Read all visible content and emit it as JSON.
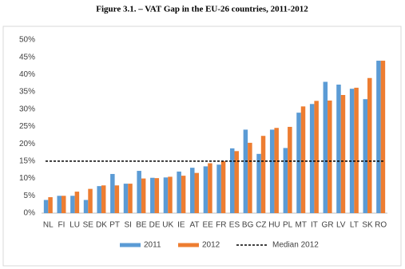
{
  "chart_data": {
    "type": "bar",
    "title": "Figure 3.1. – VAT Gap in the EU-26 countries, 2011-2012",
    "categories": [
      "NL",
      "FI",
      "LU",
      "SE",
      "DK",
      "PT",
      "SI",
      "BE",
      "DE",
      "UK",
      "IE",
      "AT",
      "EE",
      "FR",
      "ES",
      "BG",
      "CZ",
      "HU",
      "PL",
      "MT",
      "IT",
      "GR",
      "LV",
      "LT",
      "SK",
      "RO"
    ],
    "series": [
      {
        "name": "2011",
        "color": "#5b9bd5",
        "values": [
          3.8,
          5.0,
          5.0,
          3.8,
          7.8,
          11.3,
          8.5,
          12.2,
          10.2,
          10.3,
          12.0,
          13.1,
          13.5,
          14.0,
          18.7,
          24.1,
          17.1,
          24.1,
          18.8,
          29.0,
          31.5,
          37.9,
          37.1,
          35.9,
          32.9,
          44.0
        ]
      },
      {
        "name": "2012",
        "color": "#ed7d31",
        "values": [
          4.6,
          5.0,
          6.2,
          7.0,
          8.0,
          8.0,
          8.5,
          10.0,
          10.1,
          10.5,
          10.8,
          11.6,
          14.4,
          15.0,
          17.9,
          20.3,
          22.3,
          24.6,
          24.9,
          30.8,
          32.4,
          32.5,
          34.1,
          36.2,
          39.0,
          44.0
        ]
      }
    ],
    "median": {
      "name": "Median 2012",
      "value": 15,
      "color": "#000000"
    },
    "ylim": [
      0,
      50
    ],
    "yticks": [
      {
        "value": 0,
        "label": "0%"
      },
      {
        "value": 5,
        "label": "5%"
      },
      {
        "value": 10,
        "label": "10%"
      },
      {
        "value": 15,
        "label": "15%"
      },
      {
        "value": 20,
        "label": "20%"
      },
      {
        "value": 25,
        "label": "25%"
      },
      {
        "value": 30,
        "label": "30%"
      },
      {
        "value": 35,
        "label": "35%"
      },
      {
        "value": 40,
        "label": "40%"
      },
      {
        "value": 45,
        "label": "45%"
      },
      {
        "value": 50,
        "label": "50%"
      }
    ],
    "grid": false
  }
}
